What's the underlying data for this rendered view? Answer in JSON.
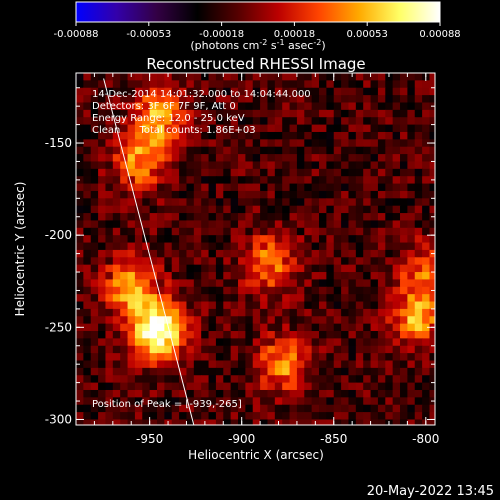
{
  "colorbar": {
    "ticks": [
      "-0.00088",
      "-0.00053",
      "-0.00018",
      "0.00018",
      "0.00053",
      "0.00088"
    ],
    "unit_main": "(photons cm",
    "unit_sup1": "-2",
    "unit_mid1": " s",
    "unit_sup2": "-1",
    "unit_mid2": " asec",
    "unit_sup3": "-2",
    "unit_end": ")",
    "stops": [
      "#0000ff",
      "#3300aa",
      "#330044",
      "#000000",
      "#550000",
      "#bb0000",
      "#ff4400",
      "#ffaa00",
      "#ffff66",
      "#ffffff"
    ]
  },
  "chart_data": {
    "type": "heatmap",
    "title": "Reconstructed RHESSI Image",
    "xlabel": "Heliocentric X (arcsec)",
    "ylabel": "Heliocentric Y (arcsec)",
    "xlim": [
      -990,
      -795
    ],
    "ylim": [
      -303,
      -112
    ],
    "xticks": [
      "-950",
      "-900",
      "-850",
      "-800"
    ],
    "xtick_values": [
      -950,
      -900,
      -850,
      -800
    ],
    "yticks": [
      "-150",
      "-200",
      "-250",
      "-300"
    ],
    "ytick_values": [
      -150,
      -200,
      -250,
      -300
    ],
    "peak_position": [
      -939,
      -265
    ],
    "sources": [
      {
        "x": -945,
        "y": -252,
        "amplitude": 1.0
      },
      {
        "x": -960,
        "y": -228,
        "amplitude": 0.65
      },
      {
        "x": -945,
        "y": -135,
        "amplitude": 0.6
      },
      {
        "x": -955,
        "y": -160,
        "amplitude": 0.55
      },
      {
        "x": -885,
        "y": -215,
        "amplitude": 0.5
      },
      {
        "x": -878,
        "y": -270,
        "amplitude": 0.55
      },
      {
        "x": -800,
        "y": -220,
        "amplitude": 0.45
      },
      {
        "x": -805,
        "y": -245,
        "amplitude": 0.6
      }
    ],
    "limb_line": [
      [
        -975,
        -115
      ],
      [
        -926,
        -303
      ]
    ]
  },
  "annotations": {
    "line1": "14-Dec-2014 14:01:32.000 to 14:04:44.000",
    "line2": "Detectors: 3F 6F 7F 9F, Att 0",
    "line3": "Energy Range: 12.0 - 25.0 keV",
    "line4": "Clean      Total counts: 1.86E+03",
    "peak": "Position of Peak = [-939,-265]"
  },
  "footer": {
    "timestamp": "20-May-2022 13:45"
  }
}
